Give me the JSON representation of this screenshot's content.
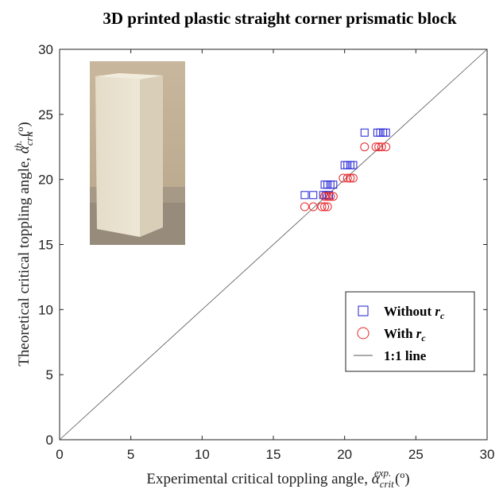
{
  "chart_data": {
    "type": "scatter",
    "title": "3D printed plastic straight corner prismatic block",
    "xlabel": {
      "text": "Experimental critical toppling angle, ",
      "symbol": "α",
      "subscript": "crit",
      "superscript": "exp.",
      "unit": " (º)"
    },
    "ylabel": {
      "text": "Theoretical critical toppling angle, ",
      "symbol": "α",
      "subscript": "crit",
      "superscript": "th.",
      "unit": " (º)"
    },
    "xlim": [
      0,
      30
    ],
    "ylim": [
      0,
      30
    ],
    "xticks": [
      0,
      5,
      10,
      15,
      20,
      25,
      30
    ],
    "yticks": [
      0,
      5,
      10,
      15,
      20,
      25,
      30
    ],
    "grid": false,
    "legend": "center right",
    "series": [
      {
        "name": "Without r",
        "name_subscript": "c",
        "marker": "square",
        "color": "#1f1fd6",
        "x": [
          17.2,
          17.8,
          18.5,
          18.7,
          18.9,
          18.6,
          18.8,
          19.0,
          19.2,
          20.0,
          20.2,
          20.4,
          20.6,
          21.4,
          22.3,
          22.5,
          22.7,
          22.9
        ],
        "values": [
          18.8,
          18.8,
          18.8,
          18.8,
          18.8,
          19.6,
          19.6,
          19.6,
          19.6,
          21.1,
          21.1,
          21.1,
          21.1,
          23.6,
          23.6,
          23.6,
          23.6,
          23.6
        ]
      },
      {
        "name": "With r",
        "name_subscript": "c",
        "marker": "circle",
        "color": "#e8262b",
        "x": [
          17.2,
          17.8,
          18.4,
          18.6,
          18.8,
          18.6,
          18.8,
          19.0,
          19.2,
          19.9,
          20.2,
          20.4,
          20.6,
          21.4,
          22.2,
          22.4,
          22.6,
          22.9
        ],
        "values": [
          17.9,
          17.9,
          17.9,
          17.9,
          17.9,
          18.7,
          18.7,
          18.7,
          18.7,
          20.1,
          20.1,
          20.1,
          20.1,
          22.5,
          22.5,
          22.5,
          22.5,
          22.5
        ]
      },
      {
        "name": "1:1 line",
        "marker": "line",
        "color": "#555555",
        "x": [
          0,
          30
        ],
        "values": [
          0,
          30
        ]
      }
    ]
  }
}
